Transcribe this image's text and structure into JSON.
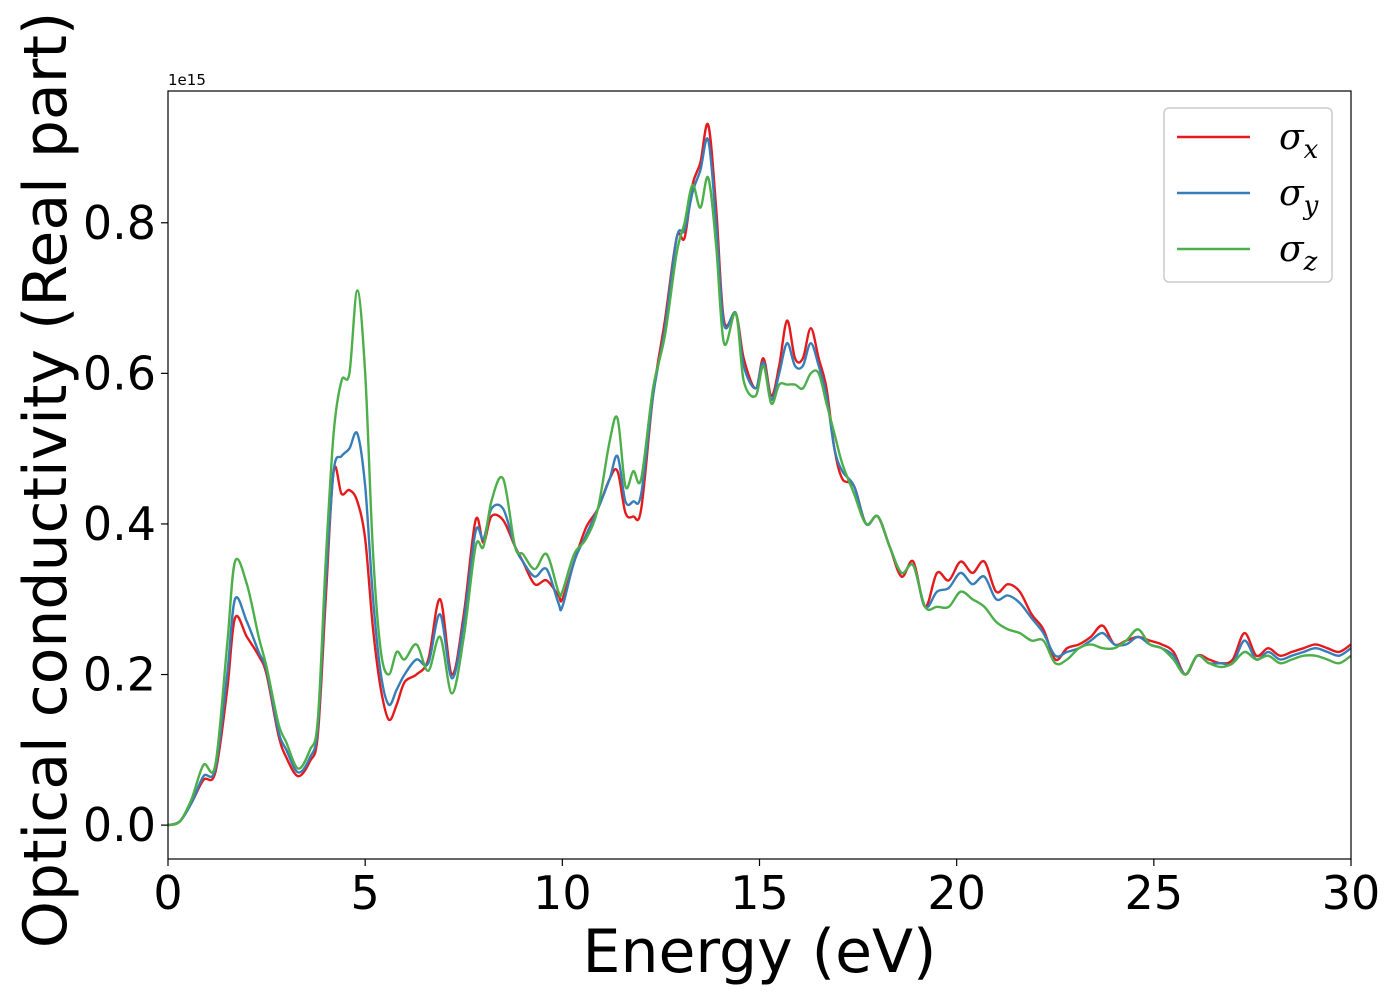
{
  "chart_data": {
    "type": "line",
    "xlabel": "Energy (eV)",
    "ylabel": "Optical conductivity (Real part)",
    "y_offset_label": "1e15",
    "xlim": [
      0,
      30
    ],
    "ylim": [
      -0.045,
      0.975
    ],
    "x_ticks": [
      0,
      5,
      10,
      15,
      20,
      25,
      30
    ],
    "x_tick_labels": [
      "0",
      "5",
      "10",
      "15",
      "20",
      "25",
      "30"
    ],
    "y_ticks": [
      0.0,
      0.2,
      0.4,
      0.6,
      0.8
    ],
    "y_tick_labels": [
      "0.0",
      "0.2",
      "0.4",
      "0.6",
      "0.8"
    ],
    "grid": false,
    "legend_position": "top-right",
    "series": [
      {
        "name": "σx",
        "legend_base": "σ",
        "legend_sub": "x",
        "color": "#e41a1c",
        "x": [
          0,
          0.3,
          0.6,
          0.9,
          1.2,
          1.5,
          1.7,
          2.0,
          2.3,
          2.5,
          2.8,
          3.0,
          3.3,
          3.6,
          3.8,
          4.0,
          4.2,
          4.4,
          4.6,
          4.8,
          5.0,
          5.2,
          5.4,
          5.6,
          5.8,
          6.0,
          6.3,
          6.6,
          6.9,
          7.2,
          7.5,
          7.8,
          8.0,
          8.2,
          8.5,
          8.8,
          9.0,
          9.3,
          9.6,
          9.9,
          10.0,
          10.3,
          10.6,
          10.9,
          11.2,
          11.4,
          11.6,
          11.8,
          12.0,
          12.3,
          12.6,
          12.9,
          13.1,
          13.3,
          13.5,
          13.7,
          13.9,
          14.1,
          14.4,
          14.6,
          14.9,
          15.1,
          15.3,
          15.5,
          15.7,
          15.9,
          16.1,
          16.3,
          16.5,
          16.7,
          16.9,
          17.1,
          17.4,
          17.7,
          18.0,
          18.3,
          18.6,
          18.9,
          19.2,
          19.5,
          19.8,
          20.1,
          20.4,
          20.7,
          21.0,
          21.3,
          21.6,
          21.9,
          22.2,
          22.5,
          22.8,
          23.1,
          23.4,
          23.7,
          24.0,
          24.3,
          24.6,
          24.9,
          25.2,
          25.5,
          25.8,
          26.1,
          26.4,
          26.7,
          27.0,
          27.3,
          27.6,
          27.9,
          28.2,
          28.5,
          28.8,
          29.1,
          29.4,
          29.7,
          30.0
        ],
        "y": [
          0,
          0.005,
          0.03,
          0.06,
          0.07,
          0.18,
          0.275,
          0.25,
          0.225,
          0.2,
          0.12,
          0.09,
          0.065,
          0.085,
          0.12,
          0.3,
          0.47,
          0.44,
          0.445,
          0.43,
          0.38,
          0.26,
          0.18,
          0.14,
          0.16,
          0.19,
          0.2,
          0.22,
          0.3,
          0.2,
          0.28,
          0.405,
          0.375,
          0.41,
          0.405,
          0.37,
          0.35,
          0.32,
          0.325,
          0.305,
          0.3,
          0.35,
          0.395,
          0.42,
          0.46,
          0.47,
          0.415,
          0.41,
          0.42,
          0.57,
          0.67,
          0.78,
          0.78,
          0.85,
          0.88,
          0.93,
          0.82,
          0.67,
          0.68,
          0.62,
          0.58,
          0.62,
          0.57,
          0.61,
          0.67,
          0.62,
          0.62,
          0.66,
          0.62,
          0.58,
          0.5,
          0.46,
          0.45,
          0.4,
          0.41,
          0.37,
          0.33,
          0.35,
          0.29,
          0.335,
          0.325,
          0.35,
          0.335,
          0.35,
          0.31,
          0.32,
          0.31,
          0.28,
          0.26,
          0.22,
          0.235,
          0.24,
          0.25,
          0.265,
          0.24,
          0.245,
          0.25,
          0.245,
          0.24,
          0.23,
          0.2,
          0.225,
          0.22,
          0.215,
          0.22,
          0.255,
          0.225,
          0.235,
          0.225,
          0.23,
          0.235,
          0.24,
          0.235,
          0.23,
          0.24
        ]
      },
      {
        "name": "σy",
        "legend_base": "σ",
        "legend_sub": "y",
        "color": "#377eb8",
        "x": [
          0,
          0.3,
          0.6,
          0.9,
          1.2,
          1.5,
          1.7,
          2.0,
          2.3,
          2.5,
          2.8,
          3.0,
          3.3,
          3.6,
          3.8,
          4.0,
          4.2,
          4.4,
          4.6,
          4.8,
          5.0,
          5.2,
          5.4,
          5.6,
          5.8,
          6.0,
          6.3,
          6.6,
          6.9,
          7.2,
          7.5,
          7.8,
          8.0,
          8.2,
          8.5,
          8.8,
          9.0,
          9.3,
          9.6,
          9.9,
          10.0,
          10.3,
          10.6,
          10.9,
          11.2,
          11.4,
          11.6,
          11.8,
          12.0,
          12.3,
          12.6,
          12.9,
          13.1,
          13.3,
          13.5,
          13.7,
          13.9,
          14.1,
          14.4,
          14.6,
          14.9,
          15.1,
          15.3,
          15.5,
          15.7,
          15.9,
          16.1,
          16.3,
          16.5,
          16.7,
          16.9,
          17.1,
          17.4,
          17.7,
          18.0,
          18.3,
          18.6,
          18.9,
          19.2,
          19.5,
          19.8,
          20.1,
          20.4,
          20.7,
          21.0,
          21.3,
          21.6,
          21.9,
          22.2,
          22.5,
          22.8,
          23.1,
          23.4,
          23.7,
          24.0,
          24.3,
          24.6,
          24.9,
          25.2,
          25.5,
          25.8,
          26.1,
          26.4,
          26.7,
          27.0,
          27.3,
          27.6,
          27.9,
          28.2,
          28.5,
          28.8,
          29.1,
          29.4,
          29.7,
          30.0
        ],
        "y": [
          0,
          0.005,
          0.03,
          0.065,
          0.075,
          0.2,
          0.3,
          0.27,
          0.23,
          0.205,
          0.125,
          0.1,
          0.07,
          0.09,
          0.13,
          0.32,
          0.47,
          0.49,
          0.5,
          0.52,
          0.45,
          0.3,
          0.2,
          0.16,
          0.18,
          0.2,
          0.22,
          0.215,
          0.28,
          0.195,
          0.27,
          0.39,
          0.38,
          0.42,
          0.42,
          0.37,
          0.35,
          0.33,
          0.34,
          0.295,
          0.29,
          0.35,
          0.385,
          0.42,
          0.46,
          0.49,
          0.43,
          0.43,
          0.44,
          0.57,
          0.66,
          0.78,
          0.79,
          0.84,
          0.87,
          0.91,
          0.8,
          0.665,
          0.68,
          0.61,
          0.58,
          0.615,
          0.565,
          0.6,
          0.64,
          0.61,
          0.61,
          0.64,
          0.61,
          0.57,
          0.5,
          0.47,
          0.45,
          0.4,
          0.41,
          0.37,
          0.335,
          0.345,
          0.29,
          0.31,
          0.315,
          0.335,
          0.32,
          0.33,
          0.3,
          0.305,
          0.295,
          0.275,
          0.255,
          0.225,
          0.23,
          0.235,
          0.245,
          0.255,
          0.24,
          0.24,
          0.25,
          0.24,
          0.235,
          0.225,
          0.2,
          0.225,
          0.215,
          0.215,
          0.215,
          0.245,
          0.22,
          0.23,
          0.22,
          0.225,
          0.23,
          0.235,
          0.23,
          0.225,
          0.235
        ]
      },
      {
        "name": "σz",
        "legend_base": "σ",
        "legend_sub": "z",
        "color": "#4daf4a",
        "x": [
          0,
          0.3,
          0.6,
          0.9,
          1.2,
          1.5,
          1.7,
          2.0,
          2.3,
          2.5,
          2.8,
          3.0,
          3.3,
          3.6,
          3.8,
          4.0,
          4.2,
          4.4,
          4.6,
          4.8,
          5.0,
          5.2,
          5.4,
          5.6,
          5.8,
          6.0,
          6.3,
          6.6,
          6.9,
          7.2,
          7.5,
          7.8,
          8.0,
          8.2,
          8.5,
          8.8,
          9.0,
          9.3,
          9.6,
          9.9,
          10.0,
          10.3,
          10.6,
          10.9,
          11.2,
          11.4,
          11.6,
          11.8,
          12.0,
          12.3,
          12.6,
          12.9,
          13.1,
          13.3,
          13.5,
          13.7,
          13.9,
          14.1,
          14.4,
          14.6,
          14.9,
          15.1,
          15.3,
          15.5,
          15.7,
          15.9,
          16.1,
          16.3,
          16.5,
          16.7,
          16.9,
          17.1,
          17.4,
          17.7,
          18.0,
          18.3,
          18.6,
          18.9,
          19.2,
          19.5,
          19.8,
          20.1,
          20.4,
          20.7,
          21.0,
          21.3,
          21.6,
          21.9,
          22.2,
          22.5,
          22.8,
          23.1,
          23.4,
          23.7,
          24.0,
          24.3,
          24.6,
          24.9,
          25.2,
          25.5,
          25.8,
          26.1,
          26.4,
          26.7,
          27.0,
          27.3,
          27.6,
          27.9,
          28.2,
          28.5,
          28.8,
          29.1,
          29.4,
          29.7,
          30.0
        ],
        "y": [
          0,
          0.005,
          0.035,
          0.08,
          0.08,
          0.24,
          0.35,
          0.32,
          0.25,
          0.21,
          0.135,
          0.11,
          0.075,
          0.1,
          0.14,
          0.35,
          0.52,
          0.59,
          0.6,
          0.71,
          0.6,
          0.36,
          0.23,
          0.2,
          0.23,
          0.22,
          0.24,
          0.205,
          0.25,
          0.175,
          0.25,
          0.37,
          0.37,
          0.43,
          0.46,
          0.37,
          0.36,
          0.34,
          0.36,
          0.31,
          0.31,
          0.36,
          0.38,
          0.42,
          0.51,
          0.54,
          0.45,
          0.47,
          0.46,
          0.58,
          0.65,
          0.76,
          0.8,
          0.85,
          0.82,
          0.86,
          0.77,
          0.64,
          0.68,
          0.59,
          0.57,
          0.61,
          0.56,
          0.585,
          0.585,
          0.585,
          0.58,
          0.6,
          0.6,
          0.56,
          0.52,
          0.48,
          0.44,
          0.4,
          0.41,
          0.37,
          0.335,
          0.345,
          0.29,
          0.29,
          0.29,
          0.31,
          0.3,
          0.29,
          0.27,
          0.26,
          0.255,
          0.245,
          0.245,
          0.215,
          0.22,
          0.235,
          0.24,
          0.235,
          0.235,
          0.245,
          0.26,
          0.24,
          0.235,
          0.22,
          0.2,
          0.225,
          0.215,
          0.21,
          0.215,
          0.23,
          0.22,
          0.225,
          0.215,
          0.22,
          0.225,
          0.225,
          0.22,
          0.215,
          0.225
        ]
      }
    ]
  }
}
